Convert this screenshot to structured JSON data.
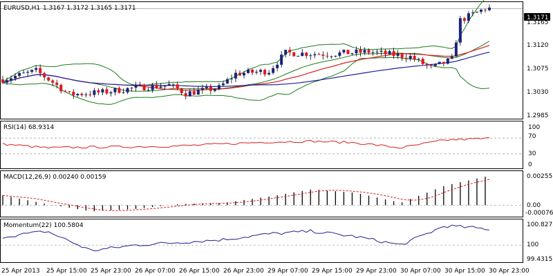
{
  "header": {
    "symbol": "EURUSD,H1",
    "ohlc": "1.3167 1.3172 1.3165 1.3171"
  },
  "price_panel": {
    "current_price_label": "1.3171",
    "axis_ticks": [
      "1.3165",
      "1.3120",
      "1.3075",
      "1.3030",
      "1.2985"
    ]
  },
  "rsi_panel": {
    "title": "RSI(14) 68.9314",
    "axis_ticks": [
      "100",
      "70",
      "30",
      "0"
    ]
  },
  "macd_panel": {
    "title": "MACD(12,26,9) 0.00240 0.00159",
    "axis_ticks": [
      "0.00255",
      "0.00",
      "-0.00076"
    ]
  },
  "momentum_panel": {
    "title": "Momentum(22) 100.5804",
    "axis_ticks": [
      "100.8278",
      "100",
      "99.4315"
    ]
  },
  "time_axis": [
    "25 Apr 2013",
    "25 Apr 15:00",
    "25 Apr 23:00",
    "26 Apr 07:00",
    "26 Apr 15:00",
    "26 Apr 23:00",
    "29 Apr 07:00",
    "29 Apr 15:00",
    "29 Apr 23:00",
    "30 Apr 07:00",
    "30 Apr 15:00",
    "30 Apr 23:00"
  ],
  "colors": {
    "bull_candle": "#1a237e",
    "bear_candle": "#e8141e",
    "bollinger": "#1b7a1b",
    "ma_red": "#d81c1c",
    "ma_blue": "#1f1fa0",
    "rsi_line": "#d81c1c",
    "macd_hist": "#000000",
    "macd_signal": "#d81c1c",
    "momentum_line": "#1f1f8f",
    "grid": "#999999"
  },
  "chart_data": [
    {
      "type": "candlestick",
      "title": "EURUSD,H1",
      "x": [
        "25 Apr 2013",
        "25 Apr 15:00",
        "25 Apr 23:00",
        "26 Apr 07:00",
        "26 Apr 15:00",
        "26 Apr 23:00",
        "29 Apr 07:00",
        "29 Apr 15:00",
        "29 Apr 23:00",
        "30 Apr 07:00",
        "30 Apr 15:00",
        "30 Apr 23:00"
      ],
      "ylim": [
        1.2975,
        1.318
      ],
      "close": [
        1.305,
        1.307,
        1.3032,
        1.304,
        1.3025,
        1.3055,
        1.309,
        1.3095,
        1.31,
        1.306,
        1.315,
        1.3171
      ]
    },
    {
      "type": "line",
      "title": "RSI(14) 68.9314",
      "ylim": [
        0,
        100
      ],
      "values": [
        55,
        45,
        47,
        48,
        50,
        55,
        60,
        62,
        58,
        45,
        65,
        68.9
      ]
    },
    {
      "type": "bar",
      "title": "MACD(12,26,9) 0.00240 0.00159",
      "ylim": [
        -0.00076,
        0.00255
      ],
      "values": [
        0.0008,
        0.0001,
        -0.0005,
        -0.0003,
        0.0001,
        0.0002,
        0.0007,
        0.0013,
        0.001,
        0.0002,
        0.0016,
        0.0024
      ]
    },
    {
      "type": "line",
      "title": "Momentum(22) 100.5804",
      "ylim": [
        99.4315,
        100.8278
      ],
      "values": [
        100.3,
        100.5,
        99.8,
        100.0,
        100.1,
        100.2,
        100.4,
        100.5,
        100.3,
        100.0,
        100.7,
        100.58
      ]
    }
  ]
}
